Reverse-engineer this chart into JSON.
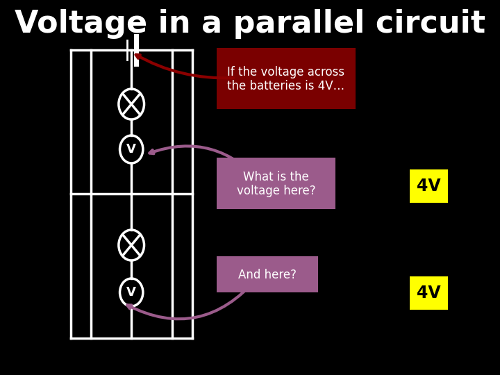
{
  "title": "Voltage in a parallel circuit",
  "title_color": "#ffffff",
  "title_fontsize": 32,
  "background_color": "#000000",
  "circuit_color": "#ffffff",
  "box1_label": "If the voltage across\nthe batteries is 4V…",
  "box1_bg": "#7a0000",
  "box1_text_color": "#ffffff",
  "box2_label": "What is the\nvoltage here?",
  "box2_bg": "#9b5b8b",
  "box2_text_color": "#ffffff",
  "box3_label": "And here?",
  "box3_bg": "#9b5b8b",
  "box3_text_color": "#ffffff",
  "answer1": "4V",
  "answer1_bg": "#ffff00",
  "answer1_text_color": "#000000",
  "answer2": "4V",
  "answer2_bg": "#ffff00",
  "answer2_text_color": "#000000",
  "arrow_color1": "#8b0000",
  "arrow_color2": "#9b5b8b"
}
